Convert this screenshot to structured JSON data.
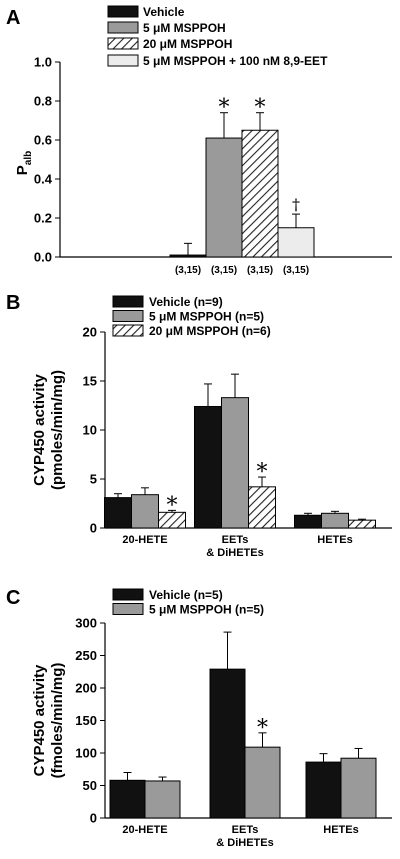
{
  "colors": {
    "vehicle": "#111111",
    "msppoh5": "#9a9a9a",
    "msppoh20_bg": "#ffffff",
    "msppoh20_stripe": "#222222",
    "msppoh_eet": "#ececec"
  },
  "chart_data": [
    {
      "panel": "A",
      "type": "bar",
      "ylabel": "P",
      "ylabel_sub": "alb",
      "ylim": [
        0,
        1.0
      ],
      "yticks": [
        "0.0",
        "0.2",
        "0.4",
        "0.6",
        "0.8",
        "1.0"
      ],
      "legend_placement": "top",
      "series": [
        {
          "name": "Vehicle",
          "value": 0.01,
          "error": 0.06,
          "annotation": "",
          "n_label": "(3,15)",
          "style": "vehicle"
        },
        {
          "name": "5 μM MSPPOH",
          "value": 0.61,
          "error": 0.13,
          "annotation": "*",
          "n_label": "(3,15)",
          "style": "msppoh5"
        },
        {
          "name": "20 μM MSPPOH",
          "value": 0.65,
          "error": 0.09,
          "annotation": "*",
          "n_label": "(3,15)",
          "style": "msppoh20"
        },
        {
          "name": "5 μM MSPPOH + 100 nM 8,9-EET",
          "value": 0.15,
          "error": 0.07,
          "annotation": "†",
          "n_label": "(3,15)",
          "style": "msppoh_eet"
        }
      ]
    },
    {
      "panel": "B",
      "type": "bar",
      "ylabel_lines": [
        "CYP450 activity",
        "(pmoles/min/mg)"
      ],
      "ylim": [
        0,
        20
      ],
      "yticks": [
        "0",
        "5",
        "10",
        "15",
        "20"
      ],
      "legend_placement": "top-left",
      "categories": [
        [
          "20-HETE"
        ],
        [
          "EETs",
          "& DiHETEs"
        ],
        [
          "HETEs"
        ]
      ],
      "series": [
        {
          "name": "Vehicle (n=9)",
          "style": "vehicle",
          "values": [
            3.1,
            12.4,
            1.3
          ],
          "errors": [
            0.4,
            2.3,
            0.2
          ],
          "annotations": [
            "",
            "",
            ""
          ]
        },
        {
          "name": "5 μM MSPPOH (n=5)",
          "style": "msppoh5",
          "values": [
            3.4,
            13.3,
            1.5
          ],
          "errors": [
            0.7,
            2.4,
            0.2
          ],
          "annotations": [
            "",
            "",
            ""
          ]
        },
        {
          "name": "20 μM MSPPOH (n=6)",
          "style": "msppoh20",
          "values": [
            1.6,
            4.2,
            0.8
          ],
          "errors": [
            0.2,
            1.0,
            0.1
          ],
          "annotations": [
            "*",
            "*",
            ""
          ]
        }
      ]
    },
    {
      "panel": "C",
      "type": "bar",
      "ylabel_lines": [
        "CYP450 activity",
        "(fmoles/min/mg)"
      ],
      "ylim": [
        0,
        300
      ],
      "yticks": [
        "0",
        "50",
        "100",
        "150",
        "200",
        "250",
        "300"
      ],
      "legend_placement": "top-left",
      "categories": [
        [
          "20-HETE"
        ],
        [
          "EETs",
          "& DiHETEs"
        ],
        [
          "HETEs"
        ]
      ],
      "series": [
        {
          "name": "Vehicle (n=5)",
          "style": "vehicle",
          "values": [
            58,
            229,
            86
          ],
          "errors": [
            12,
            57,
            13
          ],
          "annotations": [
            "",
            "",
            ""
          ]
        },
        {
          "name": "5 μM MSPPOH (n=5)",
          "style": "msppoh5",
          "values": [
            57,
            109,
            92
          ],
          "errors": [
            6,
            22,
            15
          ],
          "annotations": [
            "",
            "*",
            ""
          ]
        }
      ]
    }
  ]
}
